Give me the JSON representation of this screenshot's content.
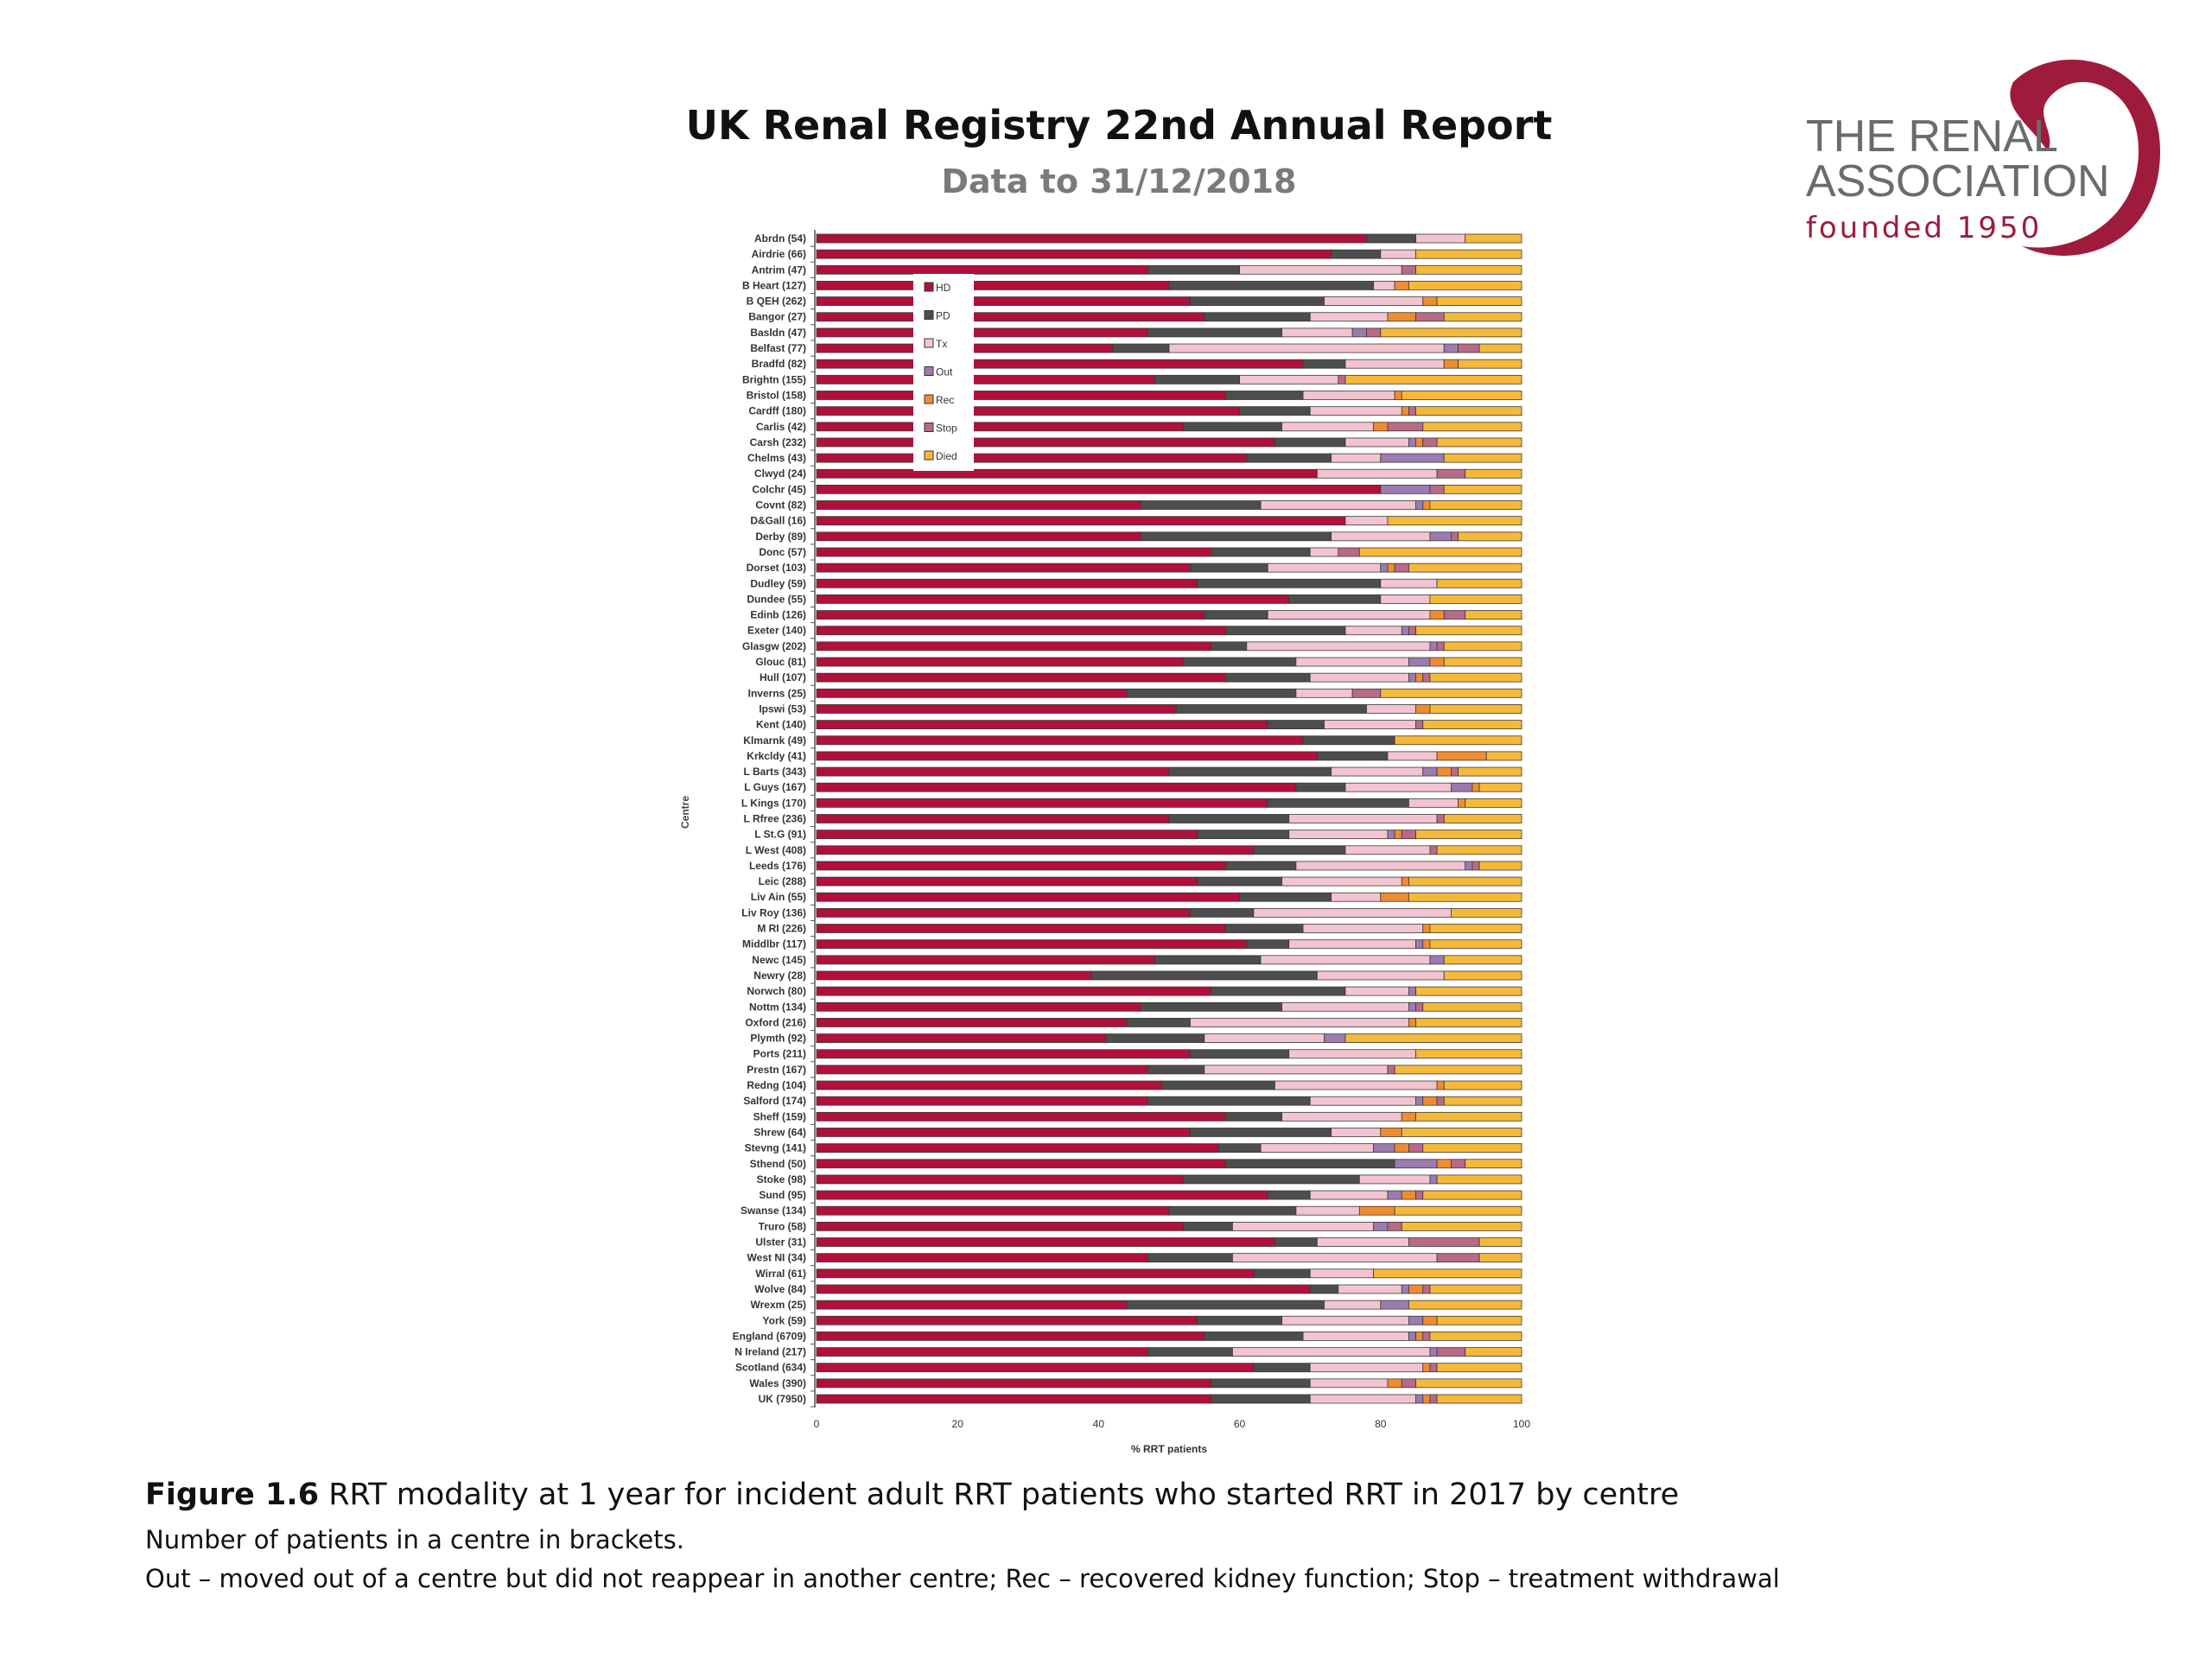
{
  "header": {
    "title": "UK Renal Registry 22nd Annual Report",
    "subtitle": "Data to 31/12/2018"
  },
  "logo": {
    "line1": "THE RENAL",
    "line2": "ASSOCIATION",
    "line3": "founded 1950",
    "color": "#9e1b3c"
  },
  "caption": {
    "figure_label": "Figure 1.6",
    "figure_text": " RRT modality at 1 year for incident adult RRT patients who started RRT in 2017 by centre",
    "line2": "Number of patients in a centre in brackets.",
    "line3": "Out – moved out of a centre but did not reappear in another centre; Rec – recovered kidney function; Stop – treatment withdrawal"
  },
  "chart_data": {
    "type": "bar",
    "orientation": "horizontal",
    "stacked": true,
    "xlabel": "% RRT patients",
    "ylabel": "Centre",
    "xlim": [
      0,
      100
    ],
    "xticks": [
      0,
      20,
      40,
      60,
      80,
      100
    ],
    "grid": false,
    "legend_position": "top-left",
    "categories": [
      "Abrdn (54)",
      "Airdrie (66)",
      "Antrim (47)",
      "B Heart (127)",
      "B QEH (262)",
      "Bangor (27)",
      "Basldn (47)",
      "Belfast (77)",
      "Bradfd (82)",
      "Brightn (155)",
      "Bristol (158)",
      "Cardff (180)",
      "Carlis (42)",
      "Carsh (232)",
      "Chelms (43)",
      "Clwyd (24)",
      "Colchr (45)",
      "Covnt (82)",
      "D&Gall (16)",
      "Derby (89)",
      "Donc (57)",
      "Dorset (103)",
      "Dudley (59)",
      "Dundee (55)",
      "Edinb (126)",
      "Exeter (140)",
      "Glasgw (202)",
      "Glouc (81)",
      "Hull (107)",
      "Inverns (25)",
      "Ipswi (53)",
      "Kent (140)",
      "Klmarnk (49)",
      "Krkcldy (41)",
      "L Barts (343)",
      "L Guys (167)",
      "L Kings (170)",
      "L Rfree (236)",
      "L St.G (91)",
      "L West (408)",
      "Leeds (176)",
      "Leic (288)",
      "Liv Ain (55)",
      "Liv Roy (136)",
      "M RI (226)",
      "Middlbr (117)",
      "Newc (145)",
      "Newry (28)",
      "Norwch (80)",
      "Nottm (134)",
      "Oxford (216)",
      "Plymth (92)",
      "Ports (211)",
      "Prestn (167)",
      "Redng (104)",
      "Salford (174)",
      "Sheff (159)",
      "Shrew (64)",
      "Stevng (141)",
      "Sthend (50)",
      "Stoke (98)",
      "Sund (95)",
      "Swanse (134)",
      "Truro (58)",
      "Ulster (31)",
      "West NI (34)",
      "Wirral (61)",
      "Wolve (84)",
      "Wrexm (25)",
      "York (59)",
      "England (6709)",
      "N Ireland (217)",
      "Scotland (634)",
      "Wales (390)",
      "UK (7950)"
    ],
    "series": [
      {
        "name": "HD",
        "color": "#b0103a",
        "values": [
          78,
          73,
          47,
          50,
          53,
          55,
          47,
          42,
          69,
          48,
          58,
          60,
          52,
          65,
          61,
          71,
          80,
          46,
          75,
          46,
          56,
          53,
          54,
          67,
          55,
          58,
          56,
          52,
          58,
          44,
          51,
          64,
          69,
          71,
          50,
          68,
          64,
          50,
          54,
          62,
          58,
          54,
          60,
          53,
          58,
          61,
          48,
          39,
          56,
          46,
          44,
          41,
          53,
          47,
          49,
          47,
          58,
          53,
          57,
          58,
          52,
          64,
          50,
          52,
          65,
          47,
          62,
          70,
          44,
          54,
          55,
          47,
          62,
          56,
          56
        ]
      },
      {
        "name": "PD",
        "color": "#4d4d4d",
        "values": [
          7,
          7,
          13,
          29,
          19,
          15,
          19,
          8,
          6,
          12,
          11,
          10,
          14,
          10,
          12,
          0,
          0,
          17,
          0,
          27,
          14,
          11,
          26,
          13,
          9,
          17,
          5,
          16,
          12,
          24,
          27,
          8,
          13,
          10,
          23,
          7,
          20,
          17,
          13,
          13,
          10,
          12,
          13,
          9,
          11,
          6,
          15,
          32,
          19,
          20,
          9,
          14,
          14,
          8,
          16,
          23,
          8,
          20,
          6,
          24,
          25,
          6,
          18,
          7,
          6,
          12,
          8,
          4,
          28,
          12,
          14,
          12,
          8,
          14,
          14
        ]
      },
      {
        "name": "Tx",
        "color": "#f2c4cf",
        "values": [
          7,
          5,
          23,
          3,
          14,
          11,
          10,
          39,
          14,
          14,
          13,
          13,
          13,
          9,
          7,
          17,
          0,
          22,
          6,
          14,
          4,
          16,
          8,
          7,
          23,
          8,
          26,
          16,
          14,
          8,
          7,
          13,
          0,
          7,
          13,
          15,
          7,
          21,
          14,
          12,
          24,
          17,
          7,
          28,
          17,
          18,
          24,
          18,
          9,
          18,
          31,
          17,
          18,
          26,
          23,
          15,
          17,
          7,
          16,
          0,
          10,
          11,
          9,
          20,
          13,
          29,
          9,
          9,
          8,
          18,
          15,
          28,
          16,
          11,
          15
        ]
      },
      {
        "name": "Out",
        "color": "#9c7bb0",
        "values": [
          0,
          0,
          0,
          0,
          0,
          0,
          2,
          2,
          0,
          0,
          0,
          0,
          0,
          1,
          9,
          0,
          7,
          1,
          0,
          3,
          0,
          1,
          0,
          0,
          0,
          1,
          1,
          3,
          1,
          0,
          0,
          0,
          0,
          0,
          2,
          3,
          0,
          0,
          1,
          0,
          1,
          0,
          0,
          0,
          0,
          1,
          2,
          0,
          1,
          1,
          0,
          3,
          0,
          0,
          0,
          1,
          0,
          0,
          3,
          6,
          1,
          2,
          0,
          2,
          0,
          0,
          0,
          1,
          4,
          2,
          1,
          1,
          0,
          0,
          1
        ]
      },
      {
        "name": "Rec",
        "color": "#f08c30",
        "values": [
          0,
          0,
          0,
          2,
          2,
          4,
          0,
          0,
          2,
          0,
          1,
          1,
          2,
          1,
          0,
          0,
          0,
          1,
          0,
          0,
          0,
          1,
          0,
          0,
          2,
          0,
          0,
          2,
          1,
          0,
          2,
          0,
          0,
          7,
          2,
          1,
          1,
          0,
          1,
          0,
          0,
          1,
          4,
          0,
          1,
          1,
          0,
          0,
          0,
          0,
          1,
          0,
          0,
          0,
          1,
          2,
          2,
          3,
          2,
          2,
          0,
          2,
          5,
          0,
          0,
          0,
          0,
          2,
          0,
          2,
          1,
          0,
          1,
          2,
          1
        ]
      },
      {
        "name": "Stop",
        "color": "#b86a86",
        "values": [
          0,
          0,
          2,
          0,
          0,
          4,
          2,
          3,
          0,
          1,
          0,
          1,
          5,
          2,
          0,
          4,
          2,
          0,
          0,
          1,
          3,
          2,
          0,
          0,
          3,
          1,
          1,
          0,
          1,
          4,
          0,
          1,
          0,
          0,
          1,
          0,
          0,
          1,
          2,
          1,
          1,
          0,
          0,
          0,
          0,
          0,
          0,
          0,
          0,
          1,
          0,
          0,
          0,
          1,
          0,
          1,
          0,
          0,
          2,
          2,
          0,
          1,
          0,
          2,
          10,
          6,
          0,
          1,
          0,
          0,
          1,
          4,
          1,
          2,
          1
        ]
      },
      {
        "name": "Died",
        "color": "#f5b93a",
        "values": [
          8,
          15,
          15,
          16,
          12,
          11,
          20,
          6,
          9,
          25,
          17,
          15,
          14,
          12,
          11,
          8,
          11,
          13,
          19,
          9,
          23,
          16,
          12,
          13,
          8,
          15,
          11,
          11,
          13,
          20,
          13,
          14,
          18,
          5,
          9,
          6,
          8,
          11,
          15,
          12,
          6,
          16,
          16,
          10,
          13,
          13,
          11,
          11,
          15,
          14,
          15,
          25,
          15,
          18,
          11,
          11,
          15,
          17,
          14,
          8,
          12,
          14,
          18,
          17,
          6,
          6,
          21,
          13,
          16,
          12,
          13,
          8,
          12,
          15,
          12
        ]
      }
    ]
  }
}
